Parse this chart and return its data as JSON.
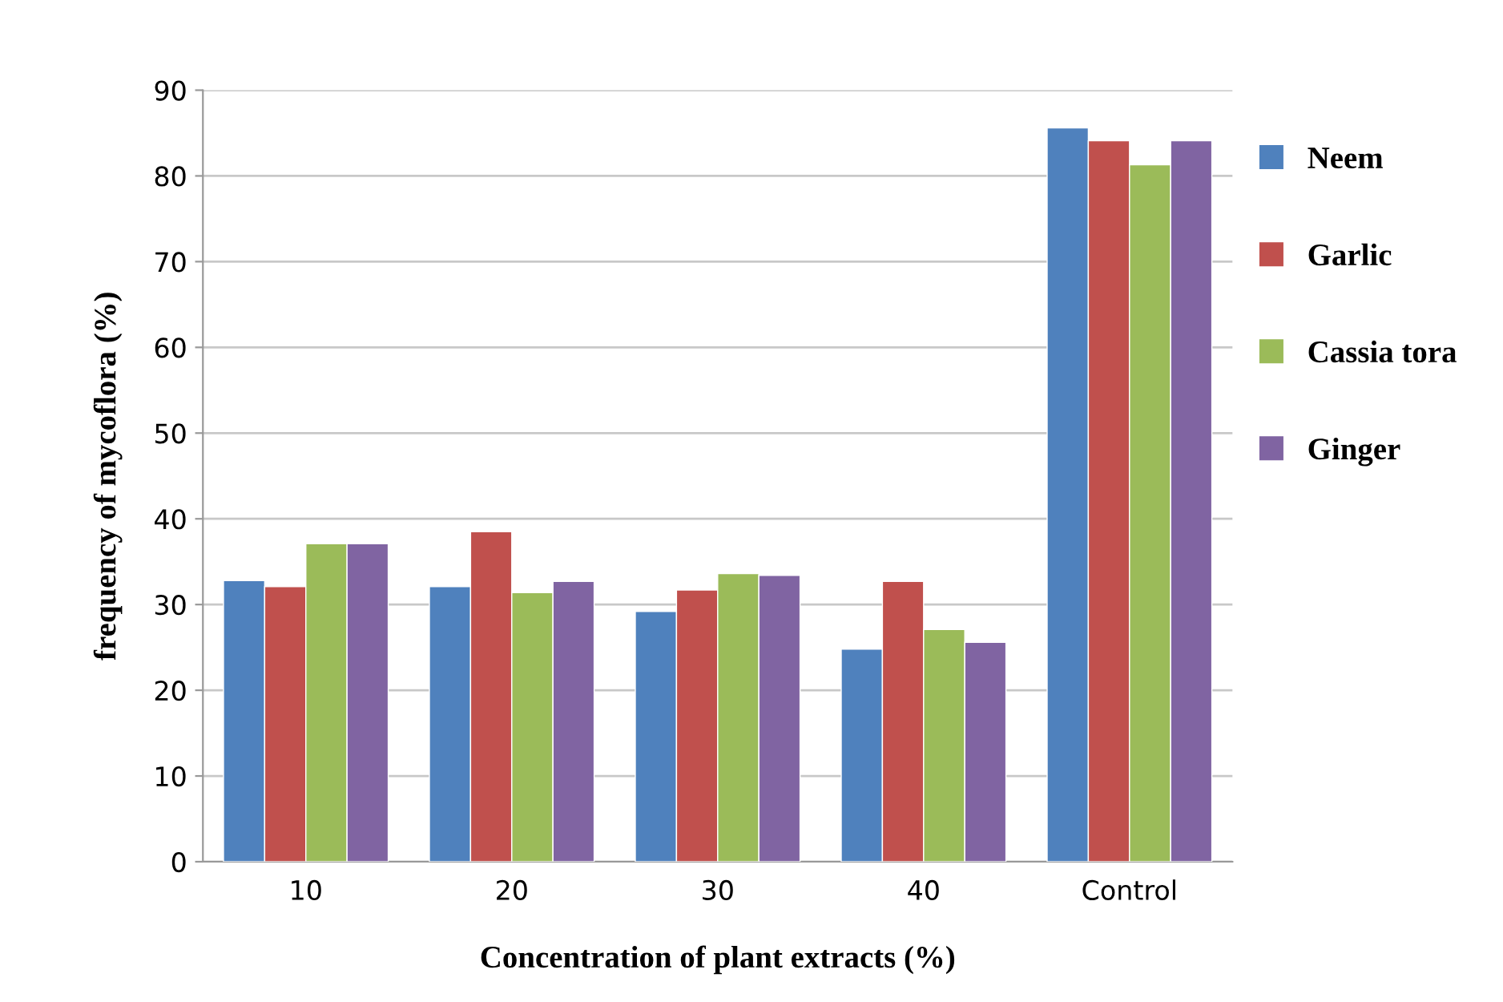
{
  "chart_data": {
    "type": "bar",
    "xlabel": "Concentration of plant extracts (%)",
    "ylabel": "frequency of mycoflora (%)",
    "categories": [
      "10",
      "20",
      "30",
      "40",
      "Control"
    ],
    "series": [
      {
        "name": "Neem",
        "color": "#4f81bd",
        "values": [
          32.8,
          32.1,
          29.2,
          24.8,
          85.6
        ]
      },
      {
        "name": "Garlic",
        "color": "#c0504d",
        "values": [
          32.1,
          38.5,
          31.7,
          32.7,
          84.1
        ]
      },
      {
        "name": "Cassia tora",
        "color": "#9bbb59",
        "values": [
          37.1,
          31.4,
          33.6,
          27.1,
          81.3
        ]
      },
      {
        "name": "Ginger",
        "color": "#8064a2",
        "values": [
          37.1,
          32.7,
          33.4,
          25.6,
          84.1
        ]
      }
    ],
    "ylim": [
      0,
      90
    ],
    "yticks": [
      0,
      10,
      20,
      30,
      40,
      50,
      60,
      70,
      80,
      90
    ],
    "grid": "y",
    "legend": "right"
  }
}
